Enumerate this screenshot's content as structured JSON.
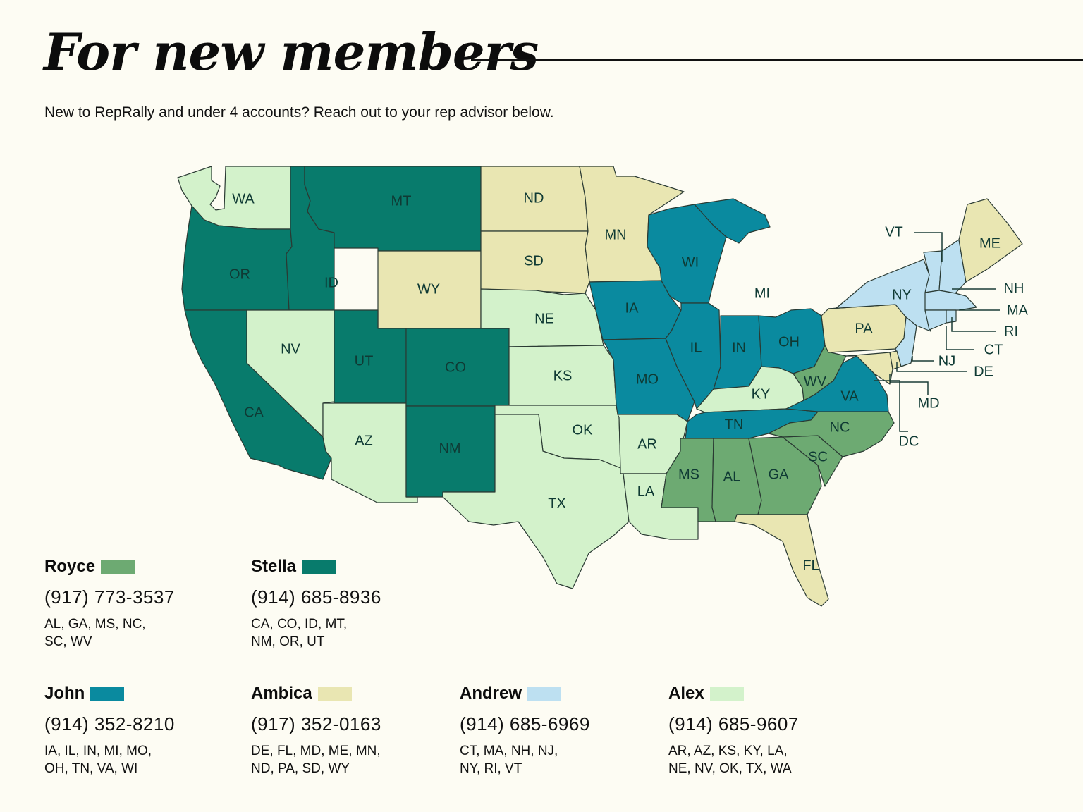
{
  "header": {
    "title": "For new members",
    "subtitle": "New to RepRally and under 4 accounts? Reach out to your rep advisor below."
  },
  "colors": {
    "Royce": "#6daa72",
    "Stella": "#087b6c",
    "John": "#0a8a9f",
    "Ambica": "#e9e6b2",
    "Andrew": "#bde0f1",
    "Alex": "#d3f2cb",
    "border": "#2a3a33",
    "background": "#fdfcf3"
  },
  "advisors": [
    {
      "name": "Royce",
      "phone": "(917) 773-3537",
      "states_line1": "AL, GA, MS, NC,",
      "states_line2": "SC, WV",
      "color": "#6daa72"
    },
    {
      "name": "Stella",
      "phone": "(914) 685-8936",
      "states_line1": "CA, CO, ID, MT,",
      "states_line2": "NM, OR, UT",
      "color": "#087b6c"
    },
    {
      "name": "John",
      "phone": "(914) 352-8210",
      "states_line1": "IA, IL, IN, MI, MO,",
      "states_line2": "OH, TN, VA, WI",
      "color": "#0a8a9f"
    },
    {
      "name": "Ambica",
      "phone": "(917) 352-0163",
      "states_line1": "DE, FL, MD, ME, MN,",
      "states_line2": "ND, PA, SD, WY",
      "color": "#e9e6b2"
    },
    {
      "name": "Andrew",
      "phone": "(914) 685-6969",
      "states_line1": "CT, MA, NH, NJ,",
      "states_line2": "NY, RI, VT",
      "color": "#bde0f1"
    },
    {
      "name": "Alex",
      "phone": "(914) 685-9607",
      "states_line1": "AR, AZ, KS, KY, LA,",
      "states_line2": "NE, NV, OK, TX, WA",
      "color": "#d3f2cb"
    }
  ],
  "map": {
    "states": [
      {
        "code": "WA",
        "advisor": "Alex"
      },
      {
        "code": "OR",
        "advisor": "Stella"
      },
      {
        "code": "CA",
        "advisor": "Stella"
      },
      {
        "code": "ID",
        "advisor": "Stella"
      },
      {
        "code": "NV",
        "advisor": "Alex"
      },
      {
        "code": "MT",
        "advisor": "Stella"
      },
      {
        "code": "WY",
        "advisor": "Ambica"
      },
      {
        "code": "UT",
        "advisor": "Stella"
      },
      {
        "code": "AZ",
        "advisor": "Alex"
      },
      {
        "code": "CO",
        "advisor": "Stella"
      },
      {
        "code": "NM",
        "advisor": "Stella"
      },
      {
        "code": "ND",
        "advisor": "Ambica"
      },
      {
        "code": "SD",
        "advisor": "Ambica"
      },
      {
        "code": "NE",
        "advisor": "Alex"
      },
      {
        "code": "KS",
        "advisor": "Alex"
      },
      {
        "code": "OK",
        "advisor": "Alex"
      },
      {
        "code": "TX",
        "advisor": "Alex"
      },
      {
        "code": "MN",
        "advisor": "Ambica"
      },
      {
        "code": "IA",
        "advisor": "John"
      },
      {
        "code": "MO",
        "advisor": "John"
      },
      {
        "code": "AR",
        "advisor": "Alex"
      },
      {
        "code": "LA",
        "advisor": "Alex"
      },
      {
        "code": "WI",
        "advisor": "John"
      },
      {
        "code": "IL",
        "advisor": "John"
      },
      {
        "code": "MI",
        "advisor": "John"
      },
      {
        "code": "IN",
        "advisor": "John"
      },
      {
        "code": "OH",
        "advisor": "John"
      },
      {
        "code": "KY",
        "advisor": "Alex"
      },
      {
        "code": "TN",
        "advisor": "John"
      },
      {
        "code": "MS",
        "advisor": "Royce"
      },
      {
        "code": "AL",
        "advisor": "Royce"
      },
      {
        "code": "GA",
        "advisor": "Royce"
      },
      {
        "code": "FL",
        "advisor": "Ambica"
      },
      {
        "code": "SC",
        "advisor": "Royce"
      },
      {
        "code": "NC",
        "advisor": "Royce"
      },
      {
        "code": "VA",
        "advisor": "John"
      },
      {
        "code": "WV",
        "advisor": "Royce"
      },
      {
        "code": "PA",
        "advisor": "Ambica"
      },
      {
        "code": "NY",
        "advisor": "Andrew"
      },
      {
        "code": "VT",
        "advisor": "Andrew"
      },
      {
        "code": "NH",
        "advisor": "Andrew"
      },
      {
        "code": "ME",
        "advisor": "Ambica"
      },
      {
        "code": "MA",
        "advisor": "Andrew"
      },
      {
        "code": "RI",
        "advisor": "Andrew"
      },
      {
        "code": "CT",
        "advisor": "Andrew"
      },
      {
        "code": "NJ",
        "advisor": "Andrew"
      },
      {
        "code": "DE",
        "advisor": "Ambica"
      },
      {
        "code": "MD",
        "advisor": "Ambica"
      },
      {
        "code": "DC",
        "advisor": "Ambica"
      }
    ]
  }
}
